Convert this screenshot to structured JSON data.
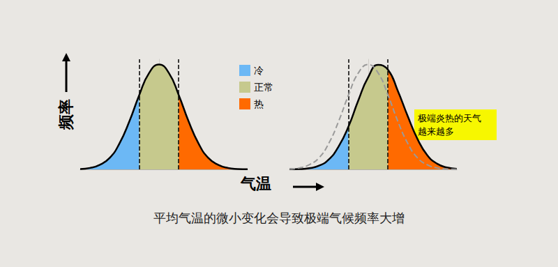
{
  "chart_data": {
    "type": "area",
    "y_label": "频率",
    "x_label": "气温",
    "caption": "平均气温的微小变化会导致极端气候频率大增",
    "legend": "top",
    "grid": false,
    "tick_labels": false,
    "xlim": [
      -4,
      4.5
    ],
    "ylim": [
      0,
      1.05
    ],
    "xticks": [],
    "yticks": [],
    "bands": [
      {
        "name": "冷",
        "color": "#6cb8f5"
      },
      {
        "name": "正常",
        "color": "#c6c98d"
      },
      {
        "name": "热",
        "color": "#ff6a00"
      }
    ],
    "panels": [
      {
        "x": [
          -4,
          -3.5,
          -3,
          -2.5,
          -2,
          -1.5,
          -1,
          -0.5,
          0,
          0.5,
          1,
          1.5,
          2,
          2.5,
          3,
          3.5,
          4,
          4.5
        ],
        "thresholds": [
          -1,
          1
        ],
        "series": [
          {
            "type": "area",
            "color": "#000000",
            "line_style": "solid",
            "values": [
              0.004,
              0.014,
              0.044,
              0.11,
              0.25,
              0.46,
              0.71,
              0.92,
              1,
              0.92,
              0.71,
              0.46,
              0.25,
              0.11,
              0.044,
              0.014,
              0.004,
              0.001
            ]
          }
        ]
      },
      {
        "x": [
          -4,
          -3.5,
          -3,
          -2.5,
          -2,
          -1.5,
          -1,
          -0.5,
          0,
          0.5,
          1,
          1.5,
          2,
          2.5,
          3,
          3.5,
          4,
          4.5
        ],
        "thresholds": [
          -1,
          1
        ],
        "annotation": "极端炎热的天气\n越来越多",
        "series": [
          {
            "type": "area",
            "color": "#000000",
            "line_style": "solid",
            "values": [
              0.001,
              0.003,
              0.011,
              0.035,
              0.095,
              0.22,
              0.41,
              0.66,
              0.88,
              0.997,
              0.95,
              0.75,
              0.51,
              0.29,
              0.135,
              0.054,
              0.018,
              0.005
            ]
          },
          {
            "type": "line",
            "color": "#9a9a9a",
            "line_style": "dashed",
            "values": [
              0.004,
              0.014,
              0.044,
              0.11,
              0.25,
              0.46,
              0.71,
              0.92,
              1,
              0.92,
              0.71,
              0.46,
              0.25,
              0.11,
              0.044,
              0.014,
              0.004,
              0.001
            ]
          }
        ]
      }
    ]
  }
}
